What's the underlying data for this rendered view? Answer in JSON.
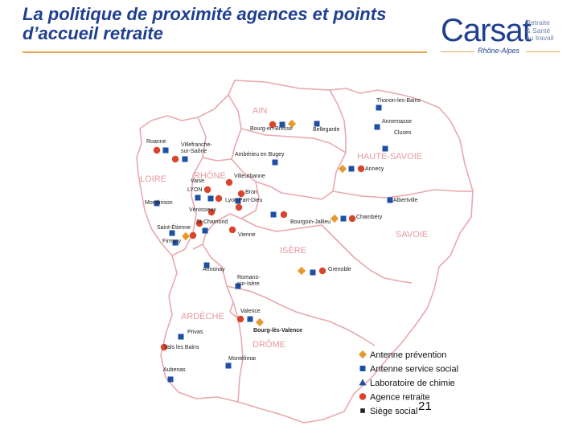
{
  "title": "La politique de proximité agences et points d’accueil retraite",
  "logo": {
    "wordmark": "Carsat",
    "tagline_1": "Retraite",
    "tagline_2": "& Santé",
    "tagline_3": "au travail",
    "region": "Rhône-Alpes"
  },
  "colors": {
    "title": "#1f3f8f",
    "region_label": "#e49aa0",
    "border": "#e8a9ad",
    "antenne_prevention": "#e49a2e",
    "antenne_service_social": "#1d4fa3",
    "laboratoire_chimie": "#1d4fa3",
    "agence_retraite": "#d9452c",
    "siege_social": "#222222"
  },
  "regions": [
    "AIN",
    "HAUTE-SAVOIE",
    "LOIRE",
    "RHÔNE",
    "SAVOIE",
    "ISÈRE",
    "ARDÈCHE",
    "DRÔME"
  ],
  "cities": [
    "Thonon-les-Bains",
    "Annemasse",
    "Cluses",
    "Bourg-en-Bresse",
    "Bellegarde",
    "Roanne",
    "Villefranche-sur-Saône",
    "Ambérieu en Bugey",
    "Annecy",
    "Villeurbanne",
    "Vaise",
    "LYON",
    "Bron",
    "Lyon Part-Dieu",
    "Montbrison",
    "Vénissieux",
    "Albertville",
    "St-Chamond",
    "Bourgoin-Jallieu",
    "Chambéry",
    "Saint-Étienne",
    "Vienne",
    "Firminy",
    "Grenoble",
    "Annonay",
    "Romans-sur-Isère",
    "Valence",
    "Bourg-lès-Valence",
    "Privas",
    "Vals les Bains",
    "Montélimar",
    "Aubenas"
  ],
  "legend": [
    {
      "label": "Antenne prévention",
      "marker": "diamond-icon"
    },
    {
      "label": "Antenne service social",
      "marker": "square-icon"
    },
    {
      "label": "Laboratoire de chimie",
      "marker": "triangle-icon"
    },
    {
      "label": "Agence retraite",
      "marker": "circle-icon"
    },
    {
      "label": "Siège social",
      "marker": "small-square-icon"
    }
  ],
  "page_number": "21"
}
